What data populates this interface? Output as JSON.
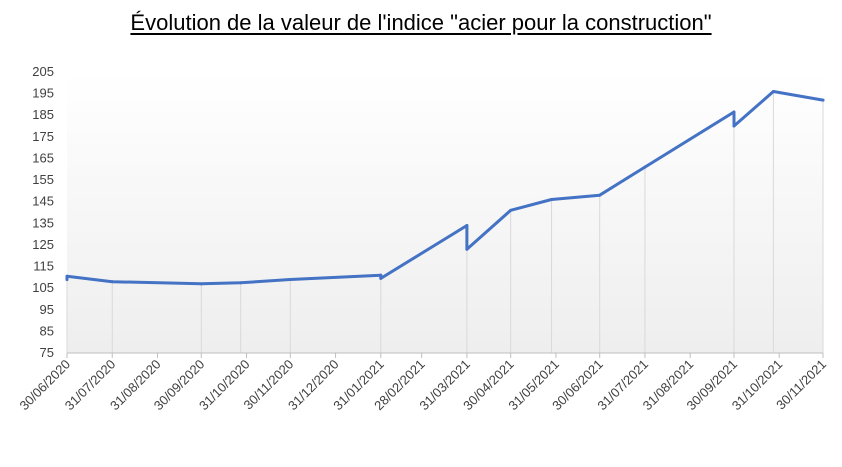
{
  "chart_data": {
    "type": "line",
    "title": "Évolution de la valeur de l'indice \"acier pour la construction\"",
    "xlabel": "",
    "ylabel": "",
    "ylim": [
      75,
      205
    ],
    "yticks": [
      75,
      85,
      95,
      105,
      115,
      125,
      135,
      145,
      155,
      165,
      175,
      185,
      195,
      205
    ],
    "xlim": [
      "2020-06-30",
      "2021-11-30"
    ],
    "x_tick_labels": [
      "30/06/2020",
      "31/07/2020",
      "31/08/2020",
      "30/09/2020",
      "31/10/2020",
      "30/11/2020",
      "31/12/2020",
      "31/01/2021",
      "28/02/2021",
      "31/03/2021",
      "30/04/2021",
      "31/05/2021",
      "30/06/2021",
      "31/07/2021",
      "31/08/2021",
      "30/09/2021",
      "31/10/2021",
      "30/11/2021"
    ],
    "grid": "vertical lines at data points",
    "legend": "none",
    "series": [
      {
        "color": "#4472C4",
        "points": [
          {
            "x": "2020-06-30",
            "y": 109
          },
          {
            "x": "2020-06-30",
            "y": 110.5
          },
          {
            "x": "2020-07-31",
            "y": 108
          },
          {
            "x": "2020-09-30",
            "y": 107
          },
          {
            "x": "2020-10-27",
            "y": 107.5
          },
          {
            "x": "2020-11-30",
            "y": 109
          },
          {
            "x": "2021-01-31",
            "y": 111
          },
          {
            "x": "2021-01-31",
            "y": 109.5
          },
          {
            "x": "2021-03-31",
            "y": 134
          },
          {
            "x": "2021-03-31",
            "y": 123
          },
          {
            "x": "2021-04-30",
            "y": 141
          },
          {
            "x": "2021-05-28",
            "y": 146
          },
          {
            "x": "2021-06-30",
            "y": 148
          },
          {
            "x": "2021-07-31",
            "y": 161
          },
          {
            "x": "2021-09-30",
            "y": 186.5
          },
          {
            "x": "2021-09-30",
            "y": 180
          },
          {
            "x": "2021-10-27",
            "y": 196
          },
          {
            "x": "2021-11-30",
            "y": 192
          }
        ]
      }
    ]
  }
}
